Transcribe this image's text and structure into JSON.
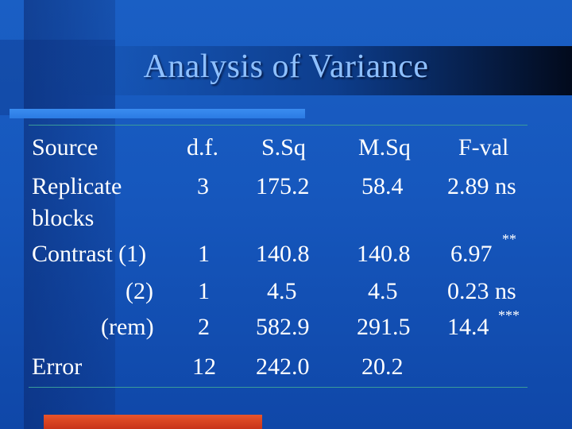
{
  "title": "Analysis of Variance",
  "headers": {
    "source": "Source",
    "df": "d.f.",
    "ssq": "S.Sq",
    "msq": "M.Sq",
    "fval": "F-val"
  },
  "rows": [
    {
      "source": "Replicate",
      "source2": "blocks",
      "df": "3",
      "ssq": "175.2",
      "msq": "58.4",
      "fval": "2.89 ns",
      "sig": ""
    },
    {
      "source": "Contrast (1)",
      "df": "1",
      "ssq": "140.8",
      "msq": "140.8",
      "fval": "6.97",
      "sig": "**"
    },
    {
      "source": "(2)",
      "df": "1",
      "ssq": "4.5",
      "msq": "4.5",
      "fval": "0.23 ns",
      "sig": ""
    },
    {
      "source": "(rem)",
      "df": "2",
      "ssq": "582.9",
      "msq": "291.5",
      "fval": "14.4",
      "sig": "***"
    },
    {
      "source": "Error",
      "df": "12",
      "ssq": "242.0",
      "msq": "20.2",
      "fval": "",
      "sig": ""
    }
  ],
  "colors": {
    "title": "#8ec0ff",
    "text": "#ffffff",
    "accent": "#e8542a",
    "rule": "#3a9a9a"
  }
}
